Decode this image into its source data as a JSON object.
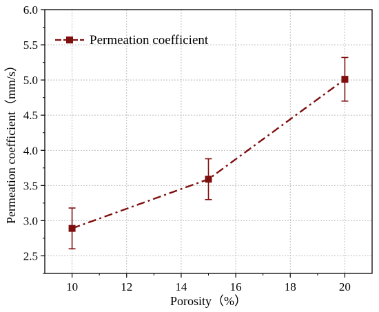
{
  "chart_data": {
    "type": "line",
    "title": "",
    "xlabel": "Porosity（%）",
    "ylabel": "Permeation coefficient（mm/s）",
    "xlim": [
      9,
      21
    ],
    "ylim": [
      2.25,
      6.0
    ],
    "x_ticks": [
      10,
      12,
      14,
      16,
      18,
      20
    ],
    "y_ticks": [
      2.5,
      3.0,
      3.5,
      4.0,
      4.5,
      5.0,
      5.5,
      6.0
    ],
    "x_tick_labels": [
      "10",
      "12",
      "14",
      "16",
      "18",
      "20"
    ],
    "y_tick_labels": [
      "2.5",
      "3.0",
      "3.5",
      "4.0",
      "4.5",
      "5.0",
      "5.5",
      "6.0"
    ],
    "grid": true,
    "legend": {
      "position": "top-left"
    },
    "series": [
      {
        "name": "Permeation coefficient",
        "color": "#7f0f0f",
        "line_style": "dash-dot",
        "marker": "square",
        "x": [
          10,
          15,
          20
        ],
        "y": [
          2.89,
          3.59,
          5.01
        ],
        "error": [
          0.29,
          0.29,
          0.31
        ]
      }
    ]
  }
}
